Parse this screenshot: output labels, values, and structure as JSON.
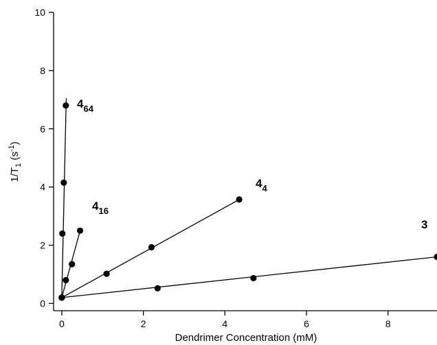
{
  "chart_data": {
    "type": "scatter",
    "xlabel": "Dendrimer Concentration (mM)",
    "ylabel_main": "1/T",
    "ylabel_sub": "1",
    "ylabel_rest": " (s",
    "ylabel_sup": "-1",
    "ylabel_close": ")",
    "xlim": [
      -0.2,
      9.2
    ],
    "ylim": [
      -0.25,
      10
    ],
    "xticks": [
      0,
      2,
      4,
      6,
      8
    ],
    "yticks": [
      0,
      2,
      4,
      6,
      8,
      10
    ],
    "grid": false,
    "series": [
      {
        "name": "4",
        "sub": "64",
        "points": [
          [
            0,
            0.2
          ],
          [
            0.015,
            2.4
          ],
          [
            0.05,
            4.15
          ],
          [
            0.1,
            6.8
          ]
        ],
        "fit": [
          [
            0,
            0.2
          ],
          [
            0.11,
            7.05
          ]
        ]
      },
      {
        "name": "4",
        "sub": "16",
        "points": [
          [
            0,
            0.2
          ],
          [
            0.1,
            0.8
          ],
          [
            0.25,
            1.35
          ],
          [
            0.45,
            2.5
          ]
        ],
        "fit": [
          [
            0,
            0.2
          ],
          [
            0.45,
            2.5
          ]
        ]
      },
      {
        "name": "4",
        "sub": "4",
        "points": [
          [
            0,
            0.2
          ],
          [
            1.1,
            1.02
          ],
          [
            2.2,
            1.93
          ],
          [
            4.35,
            3.57
          ]
        ],
        "fit": [
          [
            0,
            0.2
          ],
          [
            4.35,
            3.57
          ]
        ]
      },
      {
        "name": "3",
        "sub": "",
        "points": [
          [
            0,
            0.2
          ],
          [
            2.35,
            0.52
          ],
          [
            4.7,
            0.87
          ],
          [
            9.2,
            1.6
          ]
        ],
        "fit": [
          [
            0,
            0.2
          ],
          [
            9.2,
            1.6
          ]
        ]
      }
    ]
  }
}
